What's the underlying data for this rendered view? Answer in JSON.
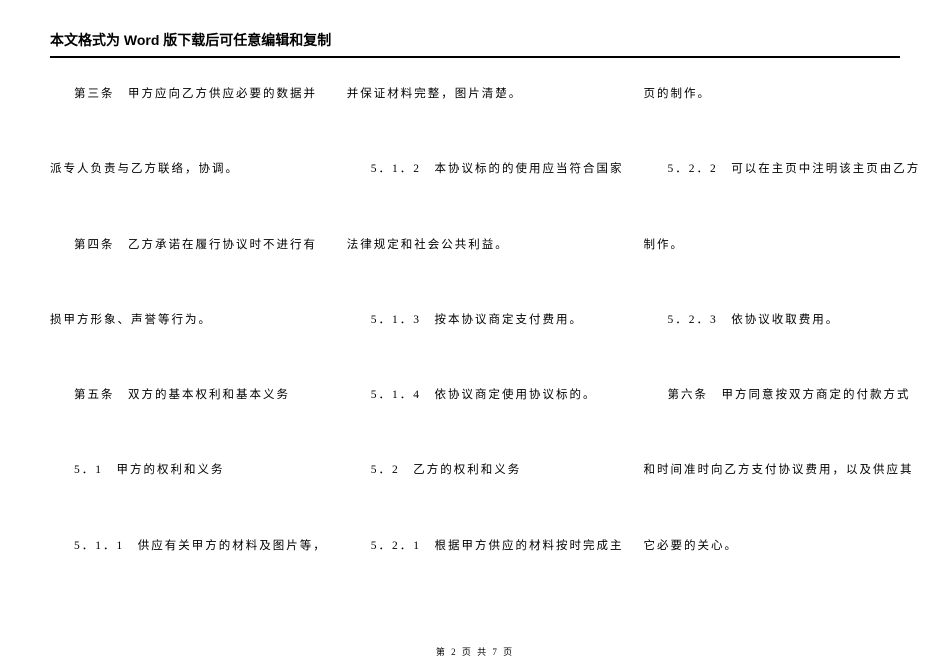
{
  "header": {
    "title": "本文格式为 Word 版下载后可任意编辑和复制"
  },
  "columns": {
    "col1": {
      "r1": "第三条　甲方应向乙方供应必要的数据并",
      "r2": "派专人负责与乙方联络，协调。",
      "r3": "第四条　乙方承诺在履行协议时不进行有",
      "r4": "损甲方形象、声誉等行为。",
      "r5": "第五条　双方的基本权利和基本义务",
      "r6": "5．1　甲方的权利和义务",
      "r7": "5．1．1　供应有关甲方的材料及图片等，"
    },
    "col2": {
      "r1": "并保证材料完整，图片清楚。",
      "r2": "5．1．2　本协议标的的使用应当符合国家",
      "r3": "法律规定和社会公共利益。",
      "r4": "5．1．3　按本协议商定支付费用。",
      "r5": "5．1．4　依协议商定使用协议标的。",
      "r6": "5．2　乙方的权利和义务",
      "r7": "5．2．1　根据甲方供应的材料按时完成主"
    },
    "col3": {
      "r1": "页的制作。",
      "r2": "5．2．2　可以在主页中注明该主页由乙方",
      "r3": "制作。",
      "r4": "5．2．3　依协议收取费用。",
      "r5": "第六条　甲方同意按双方商定的付款方式",
      "r6": "和时间准时向乙方支付协议费用，以及供应其",
      "r7": "它必要的关心。"
    }
  },
  "footer": {
    "text": "第 2 页 共 7 页"
  },
  "style": {
    "page_bg": "#ffffff",
    "text_color": "#000000",
    "header_fontsize": 14,
    "body_fontsize": 11.5,
    "footer_fontsize": 9,
    "letter_spacing": 2,
    "row_gap": 58,
    "border_width": 2
  }
}
